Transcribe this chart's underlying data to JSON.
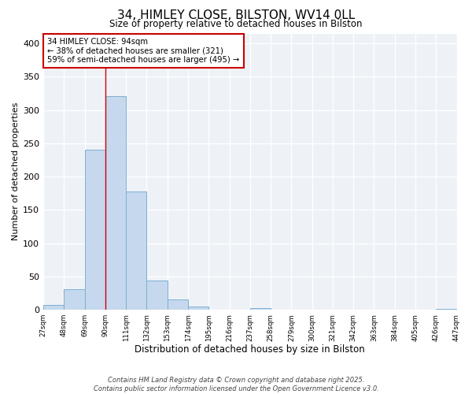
{
  "title": "34, HIMLEY CLOSE, BILSTON, WV14 0LL",
  "subtitle": "Size of property relative to detached houses in Bilston",
  "xlabel": "Distribution of detached houses by size in Bilston",
  "ylabel": "Number of detached properties",
  "bin_edges": [
    27,
    48,
    69,
    90,
    111,
    132,
    153,
    174,
    195,
    216,
    237,
    258,
    279,
    300,
    321,
    342,
    363,
    384,
    405,
    426,
    447
  ],
  "counts": [
    7,
    31,
    240,
    321,
    178,
    44,
    16,
    5,
    0,
    0,
    3,
    0,
    0,
    0,
    0,
    0,
    0,
    0,
    0,
    1
  ],
  "bar_color": "#c5d8ed",
  "bar_edge_color": "#7fafd4",
  "vline_x": 90,
  "vline_color": "#cc0000",
  "annotation_text": "34 HIMLEY CLOSE: 94sqm\n← 38% of detached houses are smaller (321)\n59% of semi-detached houses are larger (495) →",
  "annotation_box_color": "#ffffff",
  "annotation_box_edge": "#cc0000",
  "ylim": [
    0,
    415
  ],
  "yticks": [
    0,
    50,
    100,
    150,
    200,
    250,
    300,
    350,
    400
  ],
  "footnote1": "Contains HM Land Registry data © Crown copyright and database right 2025.",
  "footnote2": "Contains public sector information licensed under the Open Government Licence v3.0.",
  "bg_color": "#eef2f7",
  "tick_labels": [
    "27sqm",
    "48sqm",
    "69sqm",
    "90sqm",
    "111sqm",
    "132sqm",
    "153sqm",
    "174sqm",
    "195sqm",
    "216sqm",
    "237sqm",
    "258sqm",
    "279sqm",
    "300sqm",
    "321sqm",
    "342sqm",
    "363sqm",
    "384sqm",
    "405sqm",
    "426sqm",
    "447sqm"
  ]
}
